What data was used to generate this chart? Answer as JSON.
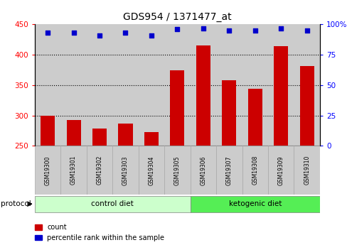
{
  "title": "GDS954 / 1371477_at",
  "samples": [
    "GSM19300",
    "GSM19301",
    "GSM19302",
    "GSM19303",
    "GSM19304",
    "GSM19305",
    "GSM19306",
    "GSM19307",
    "GSM19308",
    "GSM19309",
    "GSM19310"
  ],
  "counts": [
    300,
    293,
    279,
    287,
    272,
    374,
    415,
    358,
    344,
    414,
    381
  ],
  "percentile_ranks": [
    93,
    93,
    91,
    93,
    91,
    96,
    97,
    95,
    95,
    97,
    95
  ],
  "ylim_left": [
    250,
    450
  ],
  "ylim_right": [
    0,
    100
  ],
  "yticks_left": [
    250,
    300,
    350,
    400,
    450
  ],
  "yticks_right": [
    0,
    25,
    50,
    75,
    100
  ],
  "bar_color": "#cc0000",
  "dot_color": "#0000cc",
  "control_label": "control diet",
  "ketogenic_label": "ketogenic diet",
  "control_indices": [
    0,
    1,
    2,
    3,
    4,
    5
  ],
  "ketogenic_indices": [
    6,
    7,
    8,
    9,
    10
  ],
  "protocol_label": "protocol",
  "legend_count": "count",
  "legend_percentile": "percentile rank within the sample",
  "control_bg": "#ccffcc",
  "ketogenic_bg": "#55ee55",
  "sample_bg": "#cccccc",
  "dotted_lines": [
    300,
    350,
    400
  ],
  "bar_width": 0.55
}
